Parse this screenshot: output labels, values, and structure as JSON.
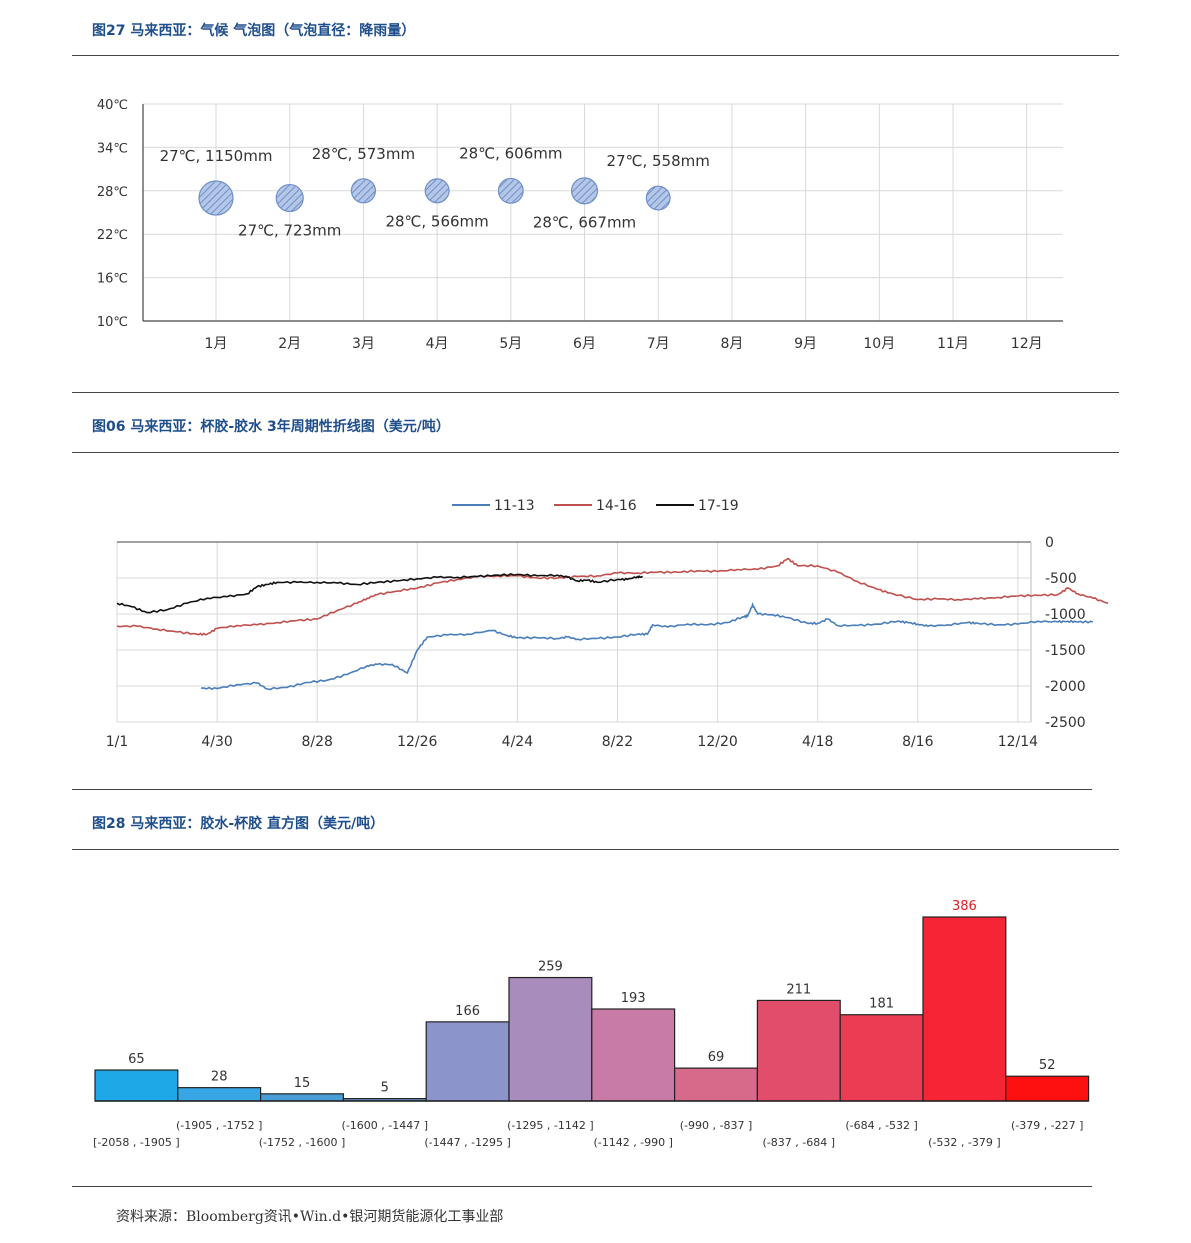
{
  "sections": {
    "fig27_title": "图27  马来西亚：气候  气泡图（气泡直径：降雨量）",
    "fig06_title": "图06  马来西亚：杯胶-胶水  3年周期性折线图（美元/吨）",
    "fig28_title": "图28  马来西亚：胶水-杯胶  直方图（美元/吨）"
  },
  "source": "资料来源：Bloomberg资讯•Win.d•银河期货能源化工事业部",
  "chart_data": [
    {
      "type": "scatter",
      "subtype": "bubble",
      "categories": [
        "1月",
        "2月",
        "3月",
        "4月",
        "5月",
        "6月",
        "7月",
        "8月",
        "9月",
        "10月",
        "11月",
        "12月"
      ],
      "y_ticks": [
        "10℃",
        "16℃",
        "22℃",
        "28℃",
        "34℃",
        "40℃"
      ],
      "ylim": [
        10,
        40
      ],
      "grid": true,
      "bubble_color": "#8eaadb",
      "points": [
        {
          "month": 1,
          "temp": 27,
          "rain": 1150,
          "label": "27℃, 1150mm",
          "label_pos": "above"
        },
        {
          "month": 2,
          "temp": 27,
          "rain": 723,
          "label": "27℃, 723mm",
          "label_pos": "below"
        },
        {
          "month": 3,
          "temp": 28,
          "rain": 573,
          "label": "28℃, 573mm",
          "label_pos": "above"
        },
        {
          "month": 4,
          "temp": 28,
          "rain": 566,
          "label": "28℃, 566mm",
          "label_pos": "below"
        },
        {
          "month": 5,
          "temp": 28,
          "rain": 606,
          "label": "28℃, 606mm",
          "label_pos": "above"
        },
        {
          "month": 6,
          "temp": 28,
          "rain": 667,
          "label": "28℃, 667mm",
          "label_pos": "below"
        },
        {
          "month": 7,
          "temp": 27,
          "rain": 558,
          "label": "27℃, 558mm",
          "label_pos": "above"
        }
      ]
    },
    {
      "type": "line",
      "legend": [
        "11-13",
        "14-16",
        "17-19"
      ],
      "legend_position": "top",
      "x_ticks": [
        "1/1",
        "4/30",
        "8/28",
        "12/26",
        "4/24",
        "8/22",
        "12/20",
        "4/18",
        "8/16",
        "12/14"
      ],
      "y_ticks": [
        "0",
        "-500",
        "-1000",
        "-1500",
        "-2000",
        "-2500"
      ],
      "ylim": [
        -2500,
        0
      ],
      "grid": true,
      "series": [
        {
          "name": "11-13",
          "color": "#4a7ebb",
          "points": [
            [
              0.84,
              -2030
            ],
            [
              1.0,
              -2035
            ],
            [
              1.2,
              -1980
            ],
            [
              1.4,
              -1960
            ],
            [
              1.5,
              -2040
            ],
            [
              1.7,
              -2020
            ],
            [
              1.9,
              -1950
            ],
            [
              2.1,
              -1920
            ],
            [
              2.3,
              -1840
            ],
            [
              2.5,
              -1720
            ],
            [
              2.6,
              -1700
            ],
            [
              2.75,
              -1700
            ],
            [
              2.9,
              -1820
            ],
            [
              3.0,
              -1500
            ],
            [
              3.1,
              -1320
            ],
            [
              3.3,
              -1290
            ],
            [
              3.5,
              -1280
            ],
            [
              3.75,
              -1230
            ],
            [
              3.9,
              -1300
            ],
            [
              4.0,
              -1330
            ],
            [
              4.2,
              -1330
            ],
            [
              4.4,
              -1340
            ],
            [
              4.5,
              -1320
            ],
            [
              4.6,
              -1350
            ],
            [
              4.8,
              -1340
            ],
            [
              5.0,
              -1320
            ],
            [
              5.2,
              -1280
            ],
            [
              5.3,
              -1280
            ],
            [
              5.35,
              -1150
            ],
            [
              5.5,
              -1180
            ],
            [
              5.7,
              -1140
            ],
            [
              5.9,
              -1150
            ],
            [
              6.1,
              -1120
            ],
            [
              6.25,
              -1040
            ],
            [
              6.3,
              -1030
            ],
            [
              6.35,
              -870
            ],
            [
              6.4,
              -1000
            ],
            [
              6.55,
              -1010
            ],
            [
              6.7,
              -1050
            ],
            [
              6.9,
              -1130
            ],
            [
              7.0,
              -1130
            ],
            [
              7.1,
              -1070
            ],
            [
              7.2,
              -1160
            ],
            [
              7.4,
              -1160
            ],
            [
              7.6,
              -1140
            ],
            [
              7.8,
              -1100
            ],
            [
              7.9,
              -1120
            ],
            [
              8.0,
              -1140
            ],
            [
              8.1,
              -1170
            ],
            [
              8.3,
              -1150
            ],
            [
              8.5,
              -1120
            ],
            [
              8.6,
              -1130
            ],
            [
              8.8,
              -1150
            ],
            [
              9.0,
              -1140
            ],
            [
              9.2,
              -1100
            ],
            [
              9.4,
              -1110
            ],
            [
              9.5,
              -1100
            ],
            [
              9.6,
              -1110
            ],
            [
              9.75,
              -1110
            ]
          ]
        },
        {
          "name": "14-16",
          "color": "#c0504d",
          "points": [
            [
              0.0,
              -1170
            ],
            [
              0.2,
              -1170
            ],
            [
              0.4,
              -1210
            ],
            [
              0.6,
              -1250
            ],
            [
              0.8,
              -1280
            ],
            [
              0.9,
              -1280
            ],
            [
              1.0,
              -1200
            ],
            [
              1.2,
              -1160
            ],
            [
              1.4,
              -1150
            ],
            [
              1.6,
              -1120
            ],
            [
              1.8,
              -1090
            ],
            [
              2.0,
              -1070
            ],
            [
              2.2,
              -950
            ],
            [
              2.4,
              -850
            ],
            [
              2.5,
              -780
            ],
            [
              2.6,
              -730
            ],
            [
              2.8,
              -680
            ],
            [
              3.0,
              -640
            ],
            [
              3.2,
              -570
            ],
            [
              3.4,
              -520
            ],
            [
              3.6,
              -480
            ],
            [
              3.8,
              -470
            ],
            [
              4.0,
              -470
            ],
            [
              4.2,
              -500
            ],
            [
              4.4,
              -500
            ],
            [
              4.6,
              -480
            ],
            [
              4.8,
              -470
            ],
            [
              5.0,
              -430
            ],
            [
              5.2,
              -430
            ],
            [
              5.4,
              -420
            ],
            [
              5.6,
              -420
            ],
            [
              5.8,
              -400
            ],
            [
              6.0,
              -410
            ],
            [
              6.2,
              -380
            ],
            [
              6.4,
              -380
            ],
            [
              6.6,
              -330
            ],
            [
              6.7,
              -230
            ],
            [
              6.8,
              -330
            ],
            [
              7.0,
              -330
            ],
            [
              7.2,
              -420
            ],
            [
              7.4,
              -550
            ],
            [
              7.6,
              -660
            ],
            [
              7.75,
              -720
            ],
            [
              8.0,
              -800
            ],
            [
              8.2,
              -790
            ],
            [
              8.4,
              -800
            ],
            [
              8.6,
              -790
            ],
            [
              8.8,
              -770
            ],
            [
              9.0,
              -750
            ],
            [
              9.2,
              -740
            ],
            [
              9.4,
              -730
            ],
            [
              9.5,
              -640
            ],
            [
              9.6,
              -720
            ],
            [
              9.75,
              -780
            ],
            [
              9.9,
              -850
            ]
          ]
        },
        {
          "name": "17-19",
          "color": "#111111",
          "points": [
            [
              0.0,
              -850
            ],
            [
              0.15,
              -900
            ],
            [
              0.3,
              -980
            ],
            [
              0.5,
              -940
            ],
            [
              0.7,
              -850
            ],
            [
              0.9,
              -780
            ],
            [
              1.1,
              -760
            ],
            [
              1.3,
              -720
            ],
            [
              1.4,
              -620
            ],
            [
              1.5,
              -590
            ],
            [
              1.6,
              -560
            ],
            [
              1.8,
              -560
            ],
            [
              2.0,
              -560
            ],
            [
              2.2,
              -570
            ],
            [
              2.4,
              -590
            ],
            [
              2.6,
              -560
            ],
            [
              2.8,
              -540
            ],
            [
              3.0,
              -510
            ],
            [
              3.2,
              -490
            ],
            [
              3.4,
              -490
            ],
            [
              3.6,
              -480
            ],
            [
              3.8,
              -460
            ],
            [
              4.0,
              -450
            ],
            [
              4.2,
              -470
            ],
            [
              4.4,
              -460
            ],
            [
              4.5,
              -490
            ],
            [
              4.6,
              -540
            ],
            [
              4.7,
              -530
            ],
            [
              4.8,
              -560
            ],
            [
              5.0,
              -520
            ],
            [
              5.1,
              -520
            ],
            [
              5.2,
              -480
            ],
            [
              5.25,
              -490
            ]
          ]
        }
      ]
    },
    {
      "type": "bar",
      "subtype": "histogram",
      "categories": [
        "[-2058 , -1905 ]",
        "(-1905 , -1752 ]",
        "(-1752 , -1600 ]",
        "(-1600 , -1447 ]",
        "(-1447 , -1295 ]",
        "(-1295 , -1142 ]",
        "(-1142 , -990 ]",
        "(-990 , -837 ]",
        "(-837 , -684 ]",
        "(-684 , -532 ]",
        "(-532 , -379 ]",
        "(-379 , -227 ]"
      ],
      "values": [
        65,
        28,
        15,
        5,
        166,
        259,
        193,
        69,
        211,
        181,
        386,
        52
      ],
      "labels": [
        "65",
        "28",
        "15",
        "5",
        "166",
        "259",
        "193",
        "69",
        "211",
        "181",
        "386",
        "52"
      ],
      "colors": [
        "#1ea8e8",
        "#38a6e4",
        "#4a9ed8",
        "#6a8fc8",
        "#8c94cc",
        "#a88cbc",
        "#c87ba6",
        "#d76a8a",
        "#e24d6c",
        "#ea3d54",
        "#f52535",
        "#ff1010"
      ],
      "highlight_label_color": "#e02020",
      "ylim": [
        0,
        420
      ]
    }
  ]
}
